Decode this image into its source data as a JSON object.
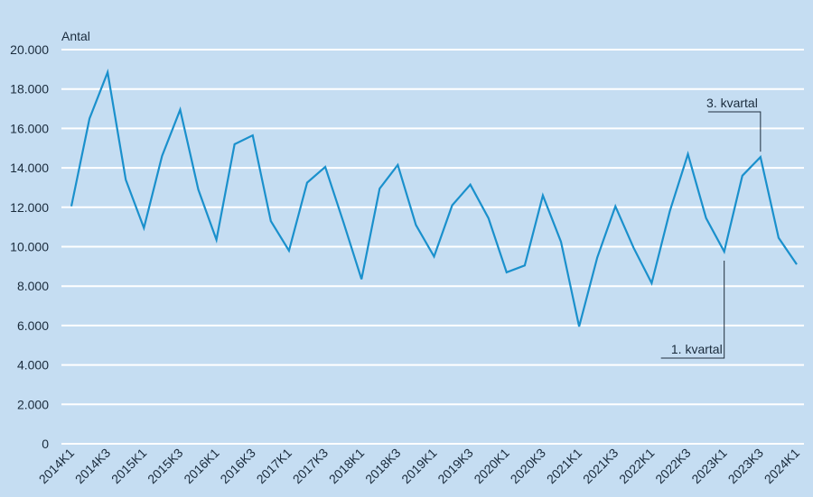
{
  "chart_data": {
    "type": "line",
    "unit_label": "Antal",
    "ylim": [
      0,
      20000
    ],
    "yticks": [
      0,
      2000,
      4000,
      6000,
      8000,
      10000,
      12000,
      14000,
      16000,
      18000,
      20000
    ],
    "ytick_labels": [
      "0",
      "2.000",
      "4.000",
      "6.000",
      "8.000",
      "10.000",
      "12.000",
      "14.000",
      "16.000",
      "18.000",
      "20.000"
    ],
    "grid": true,
    "x": [
      "2014K1",
      "2014K2",
      "2014K3",
      "2014K4",
      "2015K1",
      "2015K2",
      "2015K3",
      "2015K4",
      "2016K1",
      "2016K2",
      "2016K3",
      "2016K4",
      "2017K1",
      "2017K2",
      "2017K3",
      "2017K4",
      "2018K1",
      "2018K2",
      "2018K3",
      "2018K4",
      "2019K1",
      "2019K2",
      "2019K3",
      "2019K4",
      "2020K1",
      "2020K2",
      "2020K3",
      "2020K4",
      "2021K1",
      "2021K2",
      "2021K3",
      "2021K4",
      "2022K1",
      "2022K2",
      "2022K3",
      "2022K4",
      "2023K1",
      "2023K2",
      "2023K3",
      "2023K4",
      "2024K1"
    ],
    "xtick_labels": [
      "2014K1",
      "2014K3",
      "2015K1",
      "2015K3",
      "2016K1",
      "2016K3",
      "2017K1",
      "2017K3",
      "2018K1",
      "2018K3",
      "2019K1",
      "2019K3",
      "2020K1",
      "2020K3",
      "2021K1",
      "2021K3",
      "2022K1",
      "2022K3",
      "2023K1",
      "2023K3",
      "2024K1"
    ],
    "series": [
      {
        "color": "#1a90cc",
        "values": [
          12050,
          16500,
          18850,
          13400,
          10950,
          14600,
          16950,
          12900,
          10350,
          15200,
          15650,
          11300,
          9800,
          13250,
          14050,
          11250,
          8350,
          12950,
          14150,
          11100,
          9500,
          12100,
          13150,
          11450,
          8700,
          9050,
          12600,
          10250,
          5950,
          9450,
          12050,
          9950,
          8150,
          11800,
          14700,
          11450,
          9750,
          13600,
          14550,
          10450,
          9100
        ]
      }
    ],
    "annotations": [
      {
        "label": "3. kvartal",
        "x": "2023K3"
      },
      {
        "label": "1. kvartal",
        "x": "2023K1"
      }
    ]
  }
}
